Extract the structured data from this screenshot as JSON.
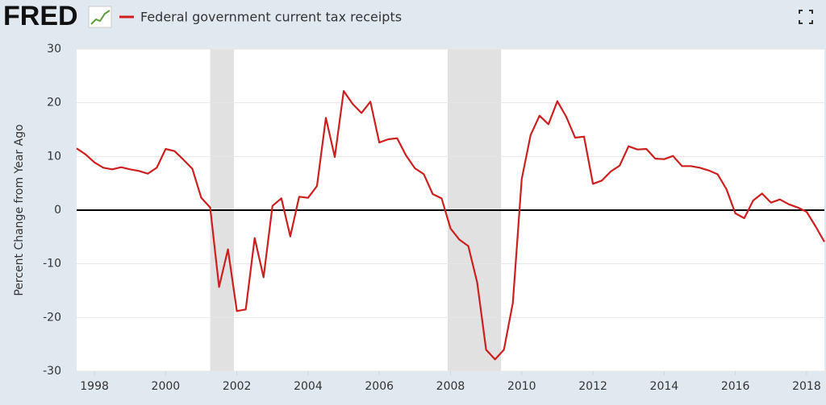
{
  "brand": "FRED",
  "chart_data": {
    "type": "line",
    "ylabel": "Percent Change from Year Ago",
    "x": [
      1997.5,
      1997.75,
      1998,
      1998.25,
      1998.5,
      1998.75,
      1999,
      1999.25,
      1999.5,
      1999.75,
      2000,
      2000.25,
      2000.5,
      2000.75,
      2001,
      2001.25,
      2001.5,
      2001.75,
      2002,
      2002.25,
      2002.5,
      2002.75,
      2003,
      2003.25,
      2003.5,
      2003.75,
      2004,
      2004.25,
      2004.5,
      2004.75,
      2005,
      2005.25,
      2005.5,
      2005.75,
      2006,
      2006.25,
      2006.5,
      2006.75,
      2007,
      2007.25,
      2007.5,
      2007.75,
      2008,
      2008.25,
      2008.5,
      2008.75,
      2009,
      2009.25,
      2009.5,
      2009.75,
      2010,
      2010.25,
      2010.5,
      2010.75,
      2011,
      2011.25,
      2011.5,
      2011.75,
      2012,
      2012.25,
      2012.5,
      2012.75,
      2013,
      2013.25,
      2013.5,
      2013.75,
      2014,
      2014.25,
      2014.5,
      2014.75,
      2015,
      2015.25,
      2015.5,
      2015.75,
      2016,
      2016.25,
      2016.5,
      2016.75,
      2017,
      2017.25,
      2017.5,
      2017.75,
      2018,
      2018.25,
      2018.5
    ],
    "series": [
      {
        "name": "Federal government current tax receipts",
        "color": "#cc1f1f",
        "values": [
          11.5,
          10.4,
          8.9,
          7.9,
          7.6,
          8.0,
          7.6,
          7.3,
          6.8,
          7.9,
          11.4,
          11.0,
          9.4,
          7.7,
          2.3,
          0.5,
          -14.3,
          -7.3,
          -18.8,
          -18.5,
          -5.2,
          -12.5,
          0.8,
          2.2,
          -4.9,
          2.5,
          2.3,
          4.5,
          17.2,
          9.9,
          22.2,
          19.8,
          18.1,
          20.2,
          12.6,
          13.2,
          13.4,
          10.2,
          7.8,
          6.7,
          3.0,
          2.2,
          -3.4,
          -5.5,
          -6.7,
          -13.5,
          -26.0,
          -27.8,
          -26.0,
          -17.3,
          5.8,
          14.0,
          17.6,
          16.0,
          20.3,
          17.4,
          13.5,
          13.7,
          4.9,
          5.5,
          7.2,
          8.3,
          11.9,
          11.3,
          11.4,
          9.6,
          9.5,
          10.1,
          8.2,
          8.2,
          7.9,
          7.4,
          6.7,
          3.9,
          -0.6,
          -1.5,
          1.8,
          3.1,
          1.4,
          2.0,
          1.1,
          0.5,
          -0.3,
          -3.0,
          -5.9
        ]
      }
    ],
    "recessions": [
      [
        2001.25,
        2001.92
      ],
      [
        2007.92,
        2009.42
      ]
    ],
    "xlim": [
      1997.5,
      2018.5
    ],
    "xticks": [
      1998,
      2000,
      2002,
      2004,
      2006,
      2008,
      2010,
      2012,
      2014,
      2016,
      2018
    ],
    "ylim": [
      -30,
      30
    ],
    "yticks": [
      -30,
      -20,
      -10,
      0,
      10,
      20,
      30
    ],
    "grid": true
  }
}
